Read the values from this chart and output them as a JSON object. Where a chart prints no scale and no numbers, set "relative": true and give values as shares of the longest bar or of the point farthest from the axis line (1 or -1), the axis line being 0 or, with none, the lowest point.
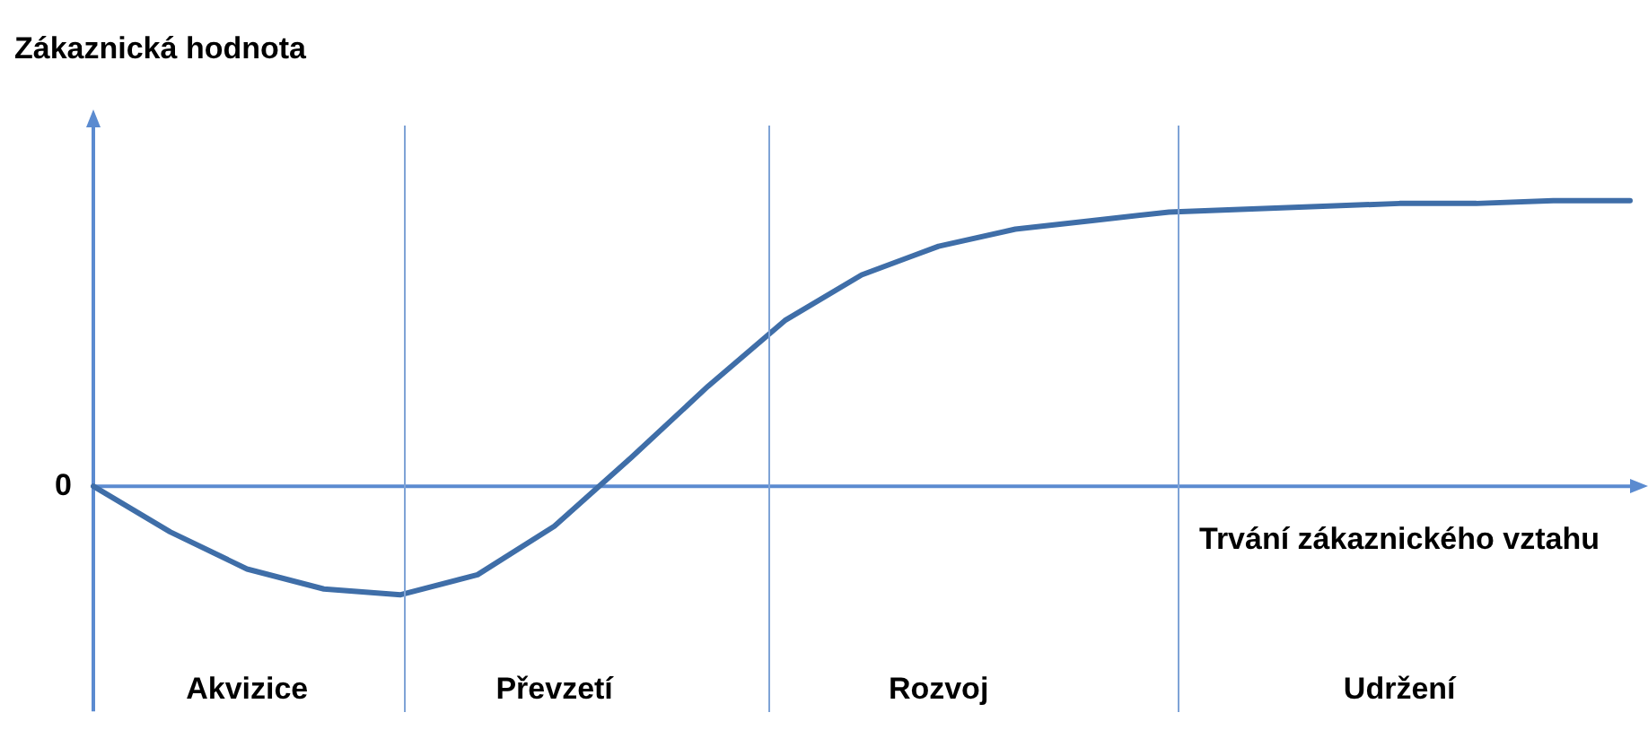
{
  "chart_data": {
    "type": "line",
    "relative": true,
    "ylabel": "Zákaznická hodnota",
    "xlabel": "Trvání zákaznického vztahu",
    "categories": [
      null,
      null,
      "Akvizice",
      null,
      null,
      null,
      "Převzetí",
      null,
      null,
      null,
      null,
      "Rozvoj",
      null,
      null,
      null,
      null,
      null,
      "Udržení",
      null,
      null,
      null
    ],
    "series": [
      {
        "color": "#3f6ea8",
        "values": [
          0,
          -0.16,
          -0.29,
          -0.36,
          -0.38,
          -0.31,
          -0.14,
          0.1,
          0.35,
          0.58,
          0.74,
          0.84,
          0.9,
          0.93,
          0.96,
          0.97,
          0.98,
          0.99,
          0.99,
          1,
          1
        ]
      }
    ],
    "marker": "none",
    "ref_lines": [
      {
        "axis": "y",
        "value": 0,
        "color": "#5b8bd0"
      }
    ],
    "annotations": [
      "0"
    ]
  }
}
